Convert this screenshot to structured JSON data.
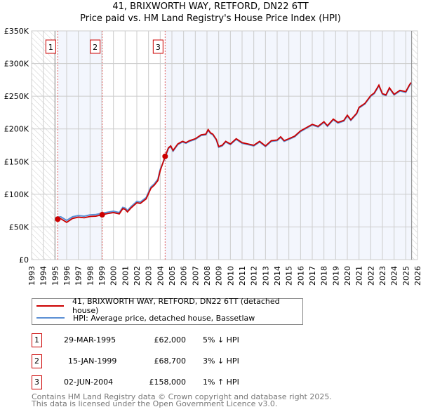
{
  "chart_data": {
    "type": "line",
    "title": "41, BRIXWORTH WAY, RETFORD, DN22 6TT",
    "subtitle": "Price paid vs. HM Land Registry's House Price Index (HPI)",
    "xlim": [
      1993,
      2026
    ],
    "ylim": [
      0,
      350000
    ],
    "x_ticks": [
      "1993",
      "1994",
      "1995",
      "1996",
      "1997",
      "1998",
      "1999",
      "2000",
      "2001",
      "2002",
      "2003",
      "2004",
      "2005",
      "2006",
      "2007",
      "2008",
      "2009",
      "2010",
      "2011",
      "2012",
      "2013",
      "2014",
      "2015",
      "2016",
      "2017",
      "2018",
      "2019",
      "2020",
      "2021",
      "2022",
      "2023",
      "2024",
      "2025",
      "2026"
    ],
    "y_ticks": [
      {
        "v": 0,
        "label": "£0"
      },
      {
        "v": 50000,
        "label": "£50K"
      },
      {
        "v": 100000,
        "label": "£100K"
      },
      {
        "v": 150000,
        "label": "£150K"
      },
      {
        "v": 200000,
        "label": "£200K"
      },
      {
        "v": 250000,
        "label": "£250K"
      },
      {
        "v": 300000,
        "label": "£300K"
      },
      {
        "v": 350000,
        "label": "£350K"
      }
    ],
    "data_start": 1995.0,
    "data_end": 2025.5,
    "x": [
      1995.24,
      1995.5,
      1996.0,
      1996.5,
      1997,
      1997.5,
      1998,
      1998.5,
      1999.04,
      1999.5,
      2000,
      2000.5,
      2000.8,
      2001,
      2001.2,
      2001.5,
      2002,
      2002.3,
      2002.8,
      2003.2,
      2003.5,
      2003.8,
      2004,
      2004.42,
      2004.7,
      2004.9,
      2005.1,
      2005.5,
      2005.9,
      2006.2,
      2006.5,
      2007,
      2007.5,
      2007.9,
      2008.1,
      2008.3,
      2008.5,
      2008.8,
      2009,
      2009.3,
      2009.6,
      2010,
      2010.5,
      2011,
      2011.5,
      2012,
      2012.5,
      2013,
      2013.5,
      2014,
      2014.3,
      2014.6,
      2015,
      2015.5,
      2016,
      2016.5,
      2017,
      2017.5,
      2018,
      2018.3,
      2018.8,
      2019.2,
      2019.7,
      2020,
      2020.3,
      2020.8,
      2021,
      2021.5,
      2022,
      2022.3,
      2022.7,
      2023,
      2023.3,
      2023.6,
      2024,
      2024.5,
      2025,
      2025.3,
      2025.45
    ],
    "series": [
      {
        "name": "41, BRIXWORTH WAY, RETFORD, DN22 6TT (detached house)",
        "color": "#cc0000",
        "values": [
          62000,
          62500,
          57000,
          63000,
          65000,
          64000,
          66000,
          66500,
          68700,
          70500,
          72000,
          70000,
          78000,
          77000,
          73000,
          79000,
          87000,
          86000,
          93000,
          109000,
          114000,
          121000,
          136000,
          158000,
          171000,
          174000,
          167000,
          177000,
          181000,
          179000,
          182000,
          185000,
          191000,
          192000,
          199000,
          194000,
          192000,
          184000,
          173000,
          175000,
          181000,
          177000,
          185000,
          179000,
          177000,
          175000,
          181000,
          174000,
          182000,
          183000,
          188000,
          182000,
          185000,
          189000,
          197000,
          202000,
          207000,
          204000,
          211000,
          205000,
          215000,
          210000,
          213000,
          221000,
          214000,
          224000,
          233000,
          239000,
          251000,
          255000,
          267000,
          254000,
          252000,
          263000,
          253000,
          259000,
          257000,
          267000,
          271000
        ]
      },
      {
        "name": "HPI: Average price, detached house, Bassetlaw",
        "color": "#5b8fd4",
        "values": [
          65000,
          65500,
          60000,
          65500,
          67500,
          66500,
          68500,
          69000,
          71000,
          72500,
          74000,
          72000,
          80000,
          79000,
          75000,
          81000,
          89000,
          88000,
          95000,
          111000,
          116000,
          123000,
          138000,
          156000,
          170000,
          173000,
          166000,
          176000,
          180000,
          178000,
          181000,
          184000,
          190000,
          191000,
          198000,
          193000,
          191000,
          183000,
          172000,
          174000,
          180000,
          176000,
          184000,
          178000,
          176000,
          174000,
          180000,
          173000,
          181000,
          182000,
          187000,
          181000,
          184000,
          188000,
          196000,
          201000,
          206000,
          203000,
          210000,
          204000,
          214000,
          209000,
          212000,
          220000,
          213000,
          223000,
          232000,
          238000,
          250000,
          254000,
          266000,
          253000,
          251000,
          262000,
          252000,
          258000,
          256000,
          266000,
          270000
        ]
      }
    ],
    "sales": [
      {
        "id": "1",
        "x": 1995.24,
        "price": 62000,
        "date": "29-MAR-1995",
        "price_label": "£62,000",
        "hpi": "5% ↓ HPI"
      },
      {
        "id": "2",
        "x": 1999.04,
        "price": 68700,
        "date": "15-JAN-1999",
        "price_label": "£68,700",
        "hpi": "3% ↓ HPI"
      },
      {
        "id": "3",
        "x": 2004.42,
        "price": 158000,
        "date": "02-JUN-2004",
        "price_label": "£158,000",
        "hpi": "1% ↑ HPI"
      }
    ]
  },
  "legend": {
    "property": "41, BRIXWORTH WAY, RETFORD, DN22 6TT (detached house)",
    "hpi": "HPI: Average price, detached house, Bassetlaw"
  },
  "footer": {
    "line1": "Contains HM Land Registry data © Crown copyright and database right 2025.",
    "line2": "This data is licensed under the Open Government Licence v3.0."
  }
}
